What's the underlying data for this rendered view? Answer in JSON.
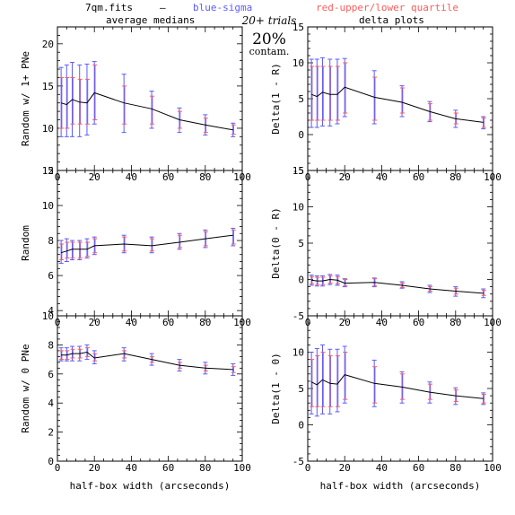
{
  "header": {
    "filename": "7qm.fits",
    "dash": "—",
    "legend_sigma": "blue-sigma",
    "legend_quartile": "red-upper/lower quartile",
    "trials": "20+ trials",
    "contam_pct": "20%",
    "contam_word": "contam.",
    "col_left_title": "average medians",
    "col_right_title": "delta plots"
  },
  "colors": {
    "line": "#000000",
    "sigma": "#5b5bff",
    "quartile": "#ff5b5b",
    "combined": "#8a4fd0"
  },
  "chart_data": [
    {
      "type": "line",
      "panel": "left-top",
      "ylabel": "Random w/ 1+ PNe",
      "xlim": [
        0,
        100
      ],
      "ylim": [
        5,
        22
      ],
      "yticks": [
        5,
        10,
        15,
        20
      ],
      "x": [
        2,
        5,
        8,
        12,
        16,
        20,
        36,
        51,
        66,
        80,
        95
      ],
      "y": [
        13.0,
        12.8,
        13.4,
        13.1,
        13.0,
        14.2,
        13.0,
        12.3,
        11.0,
        10.4,
        9.8
      ],
      "sigma_lo": [
        9.0,
        9.0,
        9.0,
        9.0,
        9.2,
        10.5,
        9.5,
        10.0,
        9.5,
        9.2,
        9.0
      ],
      "sigma_hi": [
        17.2,
        17.5,
        17.8,
        17.5,
        17.6,
        17.9,
        16.4,
        14.4,
        12.4,
        11.6,
        10.6
      ],
      "q_lo": [
        10.0,
        10.0,
        10.5,
        10.5,
        10.5,
        11.0,
        10.5,
        10.5,
        10.0,
        9.5,
        9.3
      ],
      "q_hi": [
        16.0,
        16.0,
        16.0,
        15.8,
        15.8,
        17.5,
        15.0,
        13.8,
        12.0,
        11.2,
        10.4
      ]
    },
    {
      "type": "line",
      "panel": "right-top",
      "ylabel": "Delta(1 - R)",
      "xlim": [
        0,
        100
      ],
      "ylim": [
        -5,
        15
      ],
      "yticks": [
        -5,
        0,
        5,
        10,
        15
      ],
      "x": [
        2,
        5,
        8,
        12,
        16,
        20,
        36,
        51,
        66,
        80,
        95
      ],
      "y": [
        5.6,
        5.3,
        5.9,
        5.6,
        5.6,
        6.6,
        5.2,
        4.5,
        3.2,
        2.2,
        1.7
      ],
      "sigma_lo": [
        1.0,
        1.0,
        1.2,
        1.2,
        1.5,
        2.5,
        1.5,
        2.5,
        1.8,
        1.0,
        0.8
      ],
      "sigma_hi": [
        10.5,
        10.5,
        10.7,
        10.5,
        10.5,
        10.6,
        8.9,
        6.8,
        4.6,
        3.4,
        2.5
      ],
      "q_lo": [
        2.0,
        2.0,
        2.0,
        2.0,
        2.0,
        3.0,
        2.0,
        3.0,
        2.0,
        1.5,
        1.0
      ],
      "q_hi": [
        9.5,
        9.5,
        9.5,
        9.5,
        9.5,
        10.0,
        8.0,
        6.5,
        4.3,
        3.0,
        2.3
      ]
    },
    {
      "type": "line",
      "panel": "left-mid",
      "ylabel": "Random",
      "xlim": [
        0,
        100
      ],
      "ylim": [
        3.7,
        12
      ],
      "yticks": [
        4,
        6,
        8,
        10,
        12
      ],
      "x": [
        2,
        5,
        8,
        12,
        16,
        20,
        36,
        51,
        66,
        80,
        95
      ],
      "y": [
        7.3,
        7.4,
        7.5,
        7.5,
        7.5,
        7.7,
        7.8,
        7.7,
        7.9,
        8.1,
        8.3
      ],
      "sigma_lo": [
        6.7,
        6.8,
        6.9,
        6.9,
        7.0,
        7.2,
        7.3,
        7.3,
        7.5,
        7.6,
        7.7
      ],
      "sigma_hi": [
        8.0,
        8.1,
        8.0,
        8.0,
        8.1,
        8.2,
        8.3,
        8.2,
        8.4,
        8.6,
        8.7
      ],
      "q_lo": [
        6.9,
        7.0,
        7.0,
        7.0,
        7.1,
        7.3,
        7.4,
        7.4,
        7.6,
        7.7,
        7.8
      ],
      "q_hi": [
        7.8,
        7.9,
        7.9,
        7.9,
        7.9,
        8.1,
        8.2,
        8.1,
        8.3,
        8.5,
        8.6
      ]
    },
    {
      "type": "line",
      "panel": "right-mid",
      "ylabel": "Delta(0 - R)",
      "xlim": [
        0,
        100
      ],
      "ylim": [
        -5,
        15
      ],
      "yticks": [
        -5,
        0,
        5,
        10,
        15
      ],
      "x": [
        2,
        5,
        8,
        12,
        16,
        20,
        36,
        51,
        66,
        80,
        95
      ],
      "y": [
        -0.1,
        -0.2,
        -0.2,
        0.0,
        -0.1,
        -0.5,
        -0.4,
        -0.8,
        -1.3,
        -1.6,
        -1.9
      ],
      "sigma_lo": [
        -0.8,
        -0.9,
        -0.9,
        -0.7,
        -0.8,
        -1.0,
        -1.0,
        -1.2,
        -1.8,
        -2.3,
        -2.5
      ],
      "sigma_hi": [
        0.6,
        0.5,
        0.5,
        0.7,
        0.6,
        0.1,
        0.2,
        -0.3,
        -0.8,
        -1.0,
        -1.3
      ],
      "q_lo": [
        -0.6,
        -0.7,
        -0.7,
        -0.5,
        -0.6,
        -0.9,
        -0.9,
        -1.1,
        -1.6,
        -2.0,
        -2.2
      ],
      "q_hi": [
        0.4,
        0.3,
        0.3,
        0.5,
        0.4,
        0.0,
        0.1,
        -0.5,
        -1.0,
        -1.2,
        -1.5
      ]
    },
    {
      "type": "line",
      "panel": "left-bottom",
      "ylabel": "Random w/ 0 PNe",
      "xlabel": "half-box width (arcseconds)",
      "xlim": [
        0,
        100
      ],
      "ylim": [
        0,
        10
      ],
      "yticks": [
        0,
        2,
        4,
        6,
        8,
        10
      ],
      "xticks": [
        0,
        20,
        40,
        60,
        80,
        100
      ],
      "x": [
        2,
        5,
        8,
        12,
        16,
        20,
        36,
        51,
        66,
        80,
        95
      ],
      "y": [
        7.3,
        7.3,
        7.4,
        7.4,
        7.5,
        7.1,
        7.4,
        7.0,
        6.6,
        6.4,
        6.3
      ],
      "sigma_lo": [
        6.9,
        6.9,
        6.9,
        6.9,
        7.0,
        6.7,
        6.9,
        6.6,
        6.2,
        6.0,
        5.9
      ],
      "sigma_hi": [
        7.8,
        7.8,
        7.9,
        7.9,
        8.0,
        7.6,
        7.8,
        7.4,
        7.0,
        6.8,
        6.7
      ],
      "q_lo": [
        7.0,
        7.0,
        7.1,
        7.1,
        7.2,
        6.9,
        7.1,
        6.8,
        6.4,
        6.2,
        6.1
      ],
      "q_hi": [
        7.6,
        7.6,
        7.7,
        7.7,
        7.8,
        7.4,
        7.6,
        7.2,
        6.8,
        6.6,
        6.5
      ]
    },
    {
      "type": "line",
      "panel": "right-bottom",
      "ylabel": "Delta(1 - 0)",
      "xlabel": "half-box width (arcseconds)",
      "xlim": [
        0,
        100
      ],
      "ylim": [
        -5,
        15
      ],
      "yticks": [
        -5,
        0,
        5,
        10
      ],
      "xticks": [
        0,
        20,
        40,
        60,
        80,
        100
      ],
      "x": [
        2,
        5,
        8,
        12,
        16,
        20,
        36,
        51,
        66,
        80,
        95
      ],
      "y": [
        5.9,
        5.5,
        6.2,
        5.7,
        5.6,
        6.9,
        5.7,
        5.2,
        4.5,
        4.0,
        3.6
      ],
      "sigma_lo": [
        1.5,
        1.2,
        1.5,
        1.5,
        1.8,
        3.0,
        2.5,
        3.0,
        3.0,
        2.8,
        2.8
      ],
      "sigma_hi": [
        10.0,
        10.5,
        11.0,
        10.4,
        10.4,
        10.8,
        8.9,
        7.3,
        5.9,
        5.1,
        4.4
      ],
      "q_lo": [
        2.5,
        2.5,
        2.5,
        2.5,
        2.5,
        3.5,
        3.0,
        3.5,
        3.5,
        3.2,
        3.0
      ],
      "q_hi": [
        9.0,
        9.5,
        10.0,
        9.5,
        9.5,
        10.0,
        8.0,
        7.0,
        5.6,
        4.8,
        4.2
      ]
    }
  ]
}
